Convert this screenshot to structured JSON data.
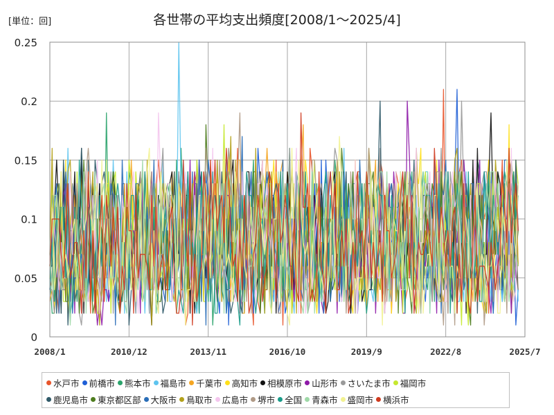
{
  "unit_label": "[単位：回]",
  "chart_data": {
    "type": "line",
    "title": "各世帯の平均支出頻度[2008/1～2025/4]",
    "xlabel": "",
    "ylabel": "",
    "x_start": "2008/1",
    "x_end": "2025/4",
    "x_range": [
      "2008/1",
      "2025/7"
    ],
    "x_ticks": [
      "2008/1",
      "2010/12",
      "2013/11",
      "2016/10",
      "2019/9",
      "2022/8",
      "2025/7"
    ],
    "ylim": [
      0,
      0.25
    ],
    "y_ticks": [
      "0",
      "0.05",
      "0.1",
      "0.15",
      "0.2",
      "0.25"
    ],
    "grid": true,
    "legend_position": "bottom",
    "series": [
      {
        "name": "水戸市",
        "color": "#e8552b",
        "seed": 11,
        "peak": 0.21,
        "peak_date": "2022/7"
      },
      {
        "name": "前橋市",
        "color": "#1f5fd6",
        "seed": 23,
        "peak": 0.21,
        "peak_date": "2023/1"
      },
      {
        "name": "熊本市",
        "color": "#2aa36b",
        "seed": 37,
        "peak": 0.19,
        "peak_date": "2010/2"
      },
      {
        "name": "福島市",
        "color": "#5ec4ef",
        "seed": 41,
        "peak": 0.25,
        "peak_date": "2012/10"
      },
      {
        "name": "千葉市",
        "color": "#f5a623",
        "seed": 53,
        "peak": 0.18,
        "peak_date": "2017/5"
      },
      {
        "name": "高知市",
        "color": "#ffe01a",
        "seed": 61,
        "peak": 0.18,
        "peak_date": "2024/12"
      },
      {
        "name": "相模原市",
        "color": "#111111",
        "seed": 71,
        "peak": 0.19,
        "peak_date": "2024/4"
      },
      {
        "name": "山形市",
        "color": "#8e1aa8",
        "seed": 83,
        "peak": 0.2,
        "peak_date": "2021/3"
      },
      {
        "name": "さいたま市",
        "color": "#9a9a9a",
        "seed": 97,
        "peak": 0.2,
        "peak_date": "2023/3"
      },
      {
        "name": "福岡市",
        "color": "#c6e830",
        "seed": 101,
        "peak": 0.18,
        "peak_date": "2014/6"
      },
      {
        "name": "鹿児島市",
        "color": "#2f5968",
        "seed": 113,
        "peak": 0.2,
        "peak_date": "2020/3"
      },
      {
        "name": "東京都区部",
        "color": "#4e7d1e",
        "seed": 127,
        "peak": 0.18,
        "peak_date": "2013/10"
      },
      {
        "name": "大阪市",
        "color": "#2a6eb8",
        "seed": 131,
        "peak": 0.17,
        "peak_date": "2015/2"
      },
      {
        "name": "鳥取市",
        "color": "#b3a11a",
        "seed": 139,
        "peak": 0.17,
        "peak_date": "2014/9"
      },
      {
        "name": "広島市",
        "color": "#f4c6ee",
        "seed": 149,
        "peak": 0.19,
        "peak_date": "2012/1"
      },
      {
        "name": "堺市",
        "color": "#b09a86",
        "seed": 151,
        "peak": 0.19,
        "peak_date": "2015/1"
      },
      {
        "name": "全国",
        "color": "#1a9c8a",
        "seed": 163,
        "peak": 0.15,
        "peak_date": "2009/2"
      },
      {
        "name": "青森市",
        "color": "#9fd9a8",
        "seed": 173,
        "peak": 0.15,
        "peak_date": "2011/6"
      },
      {
        "name": "盛岡市",
        "color": "#f2f291",
        "seed": 181,
        "peak": 0.17,
        "peak_date": "2018/9"
      },
      {
        "name": "横浜市",
        "color": "#cf3a1e",
        "seed": 191,
        "peak": 0.19,
        "peak_date": "2017/4"
      }
    ]
  }
}
